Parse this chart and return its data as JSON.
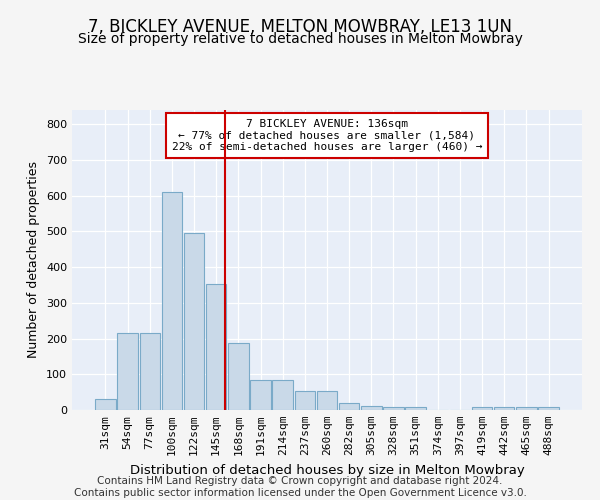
{
  "title": "7, BICKLEY AVENUE, MELTON MOWBRAY, LE13 1UN",
  "subtitle": "Size of property relative to detached houses in Melton Mowbray",
  "xlabel": "Distribution of detached houses by size in Melton Mowbray",
  "ylabel": "Number of detached properties",
  "categories": [
    "31sqm",
    "54sqm",
    "77sqm",
    "100sqm",
    "122sqm",
    "145sqm",
    "168sqm",
    "191sqm",
    "214sqm",
    "237sqm",
    "260sqm",
    "282sqm",
    "305sqm",
    "328sqm",
    "351sqm",
    "374sqm",
    "397sqm",
    "419sqm",
    "442sqm",
    "465sqm",
    "488sqm"
  ],
  "values": [
    32,
    215,
    215,
    610,
    497,
    352,
    188,
    85,
    85,
    52,
    52,
    20,
    12,
    8,
    8,
    0,
    0,
    8,
    8,
    8,
    8
  ],
  "bar_color": "#c9d9e8",
  "bar_edge_color": "#7aaac8",
  "vline_color": "#cc0000",
  "annotation_text": "7 BICKLEY AVENUE: 136sqm\n← 77% of detached houses are smaller (1,584)\n22% of semi-detached houses are larger (460) →",
  "annotation_box_color": "#ffffff",
  "annotation_box_edge": "#cc0000",
  "ylim": [
    0,
    840
  ],
  "yticks": [
    0,
    100,
    200,
    300,
    400,
    500,
    600,
    700,
    800
  ],
  "footer": "Contains HM Land Registry data © Crown copyright and database right 2024.\nContains public sector information licensed under the Open Government Licence v3.0.",
  "bg_color": "#e8eef8",
  "grid_color": "#ffffff",
  "title_fontsize": 12,
  "subtitle_fontsize": 10,
  "tick_fontsize": 8,
  "xlabel_fontsize": 9.5,
  "ylabel_fontsize": 9,
  "footer_fontsize": 7.5,
  "vline_bar_index": 5.42
}
